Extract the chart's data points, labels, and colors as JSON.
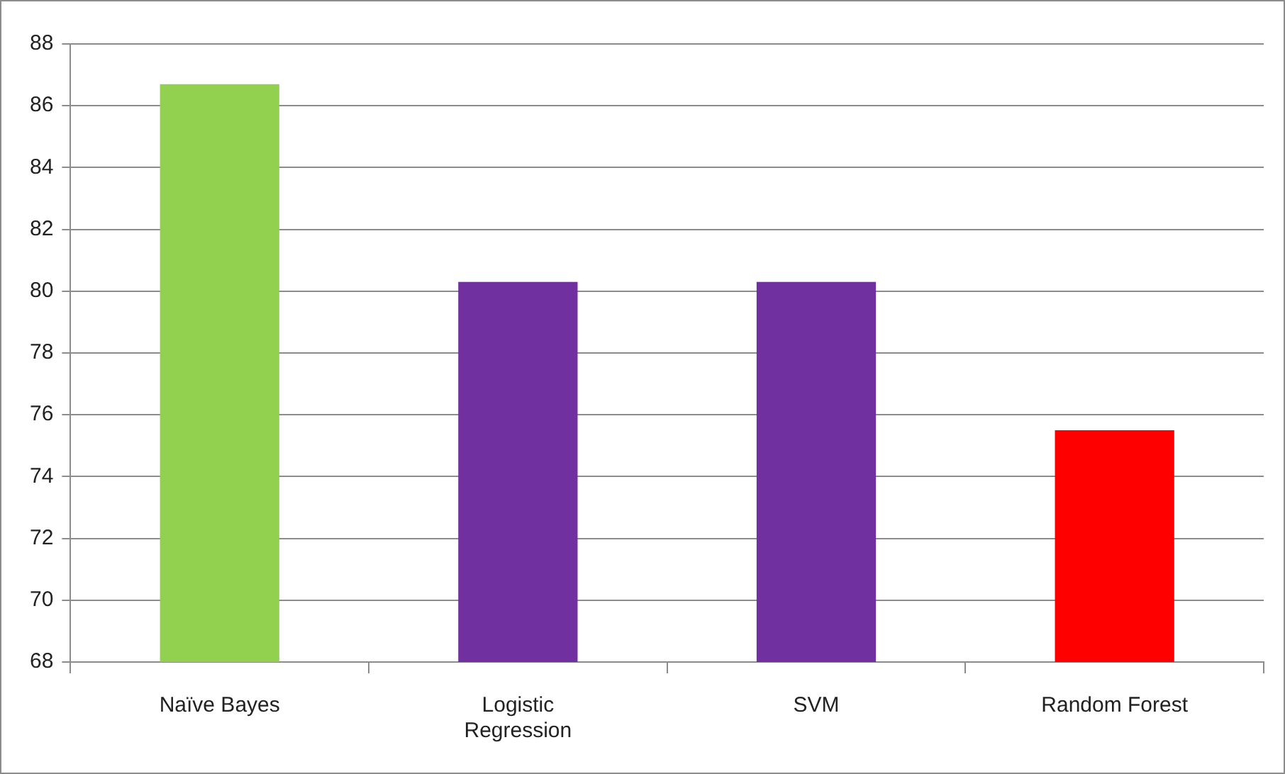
{
  "chart_data": {
    "type": "bar",
    "categories": [
      "Naïve Bayes",
      "Logistic Regression",
      "SVM",
      "Random Forest"
    ],
    "values": [
      86.7,
      80.3,
      80.3,
      75.5
    ],
    "colors": [
      "#92d050",
      "#7030a0",
      "#7030a0",
      "#ff0000"
    ],
    "ylim": [
      68,
      88
    ],
    "yticks": [
      68,
      70,
      72,
      74,
      76,
      78,
      80,
      82,
      84,
      86,
      88
    ],
    "grid": "y",
    "legend": false
  }
}
